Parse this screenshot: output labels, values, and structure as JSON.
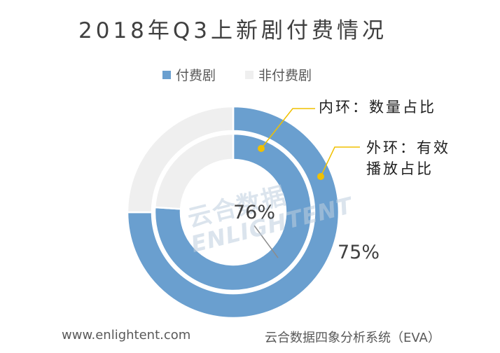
{
  "chart_data": {
    "type": "pie",
    "title": "2018年Q3上新剧付费情况",
    "legend": [
      "付费剧",
      "非付费剧"
    ],
    "legend_position": "top",
    "colors": {
      "paid": "#6a9fcf",
      "unpaid": "#efefef"
    },
    "rings": [
      {
        "name": "内环",
        "values": [
          76,
          24
        ],
        "label": "76%"
      },
      {
        "name": "外环",
        "values": [
          75,
          25
        ],
        "label": "75%"
      }
    ]
  },
  "annotations": {
    "inner": "内环：数量占比",
    "outer_line1": "外环：有效",
    "outer_line2": "播放占比"
  },
  "watermark": {
    "cn": "云合数据",
    "en": "ENLIGHTENT"
  },
  "footer": {
    "left": "www.enlightent.com",
    "right": "云合数据四象分析系统（EVA）"
  }
}
